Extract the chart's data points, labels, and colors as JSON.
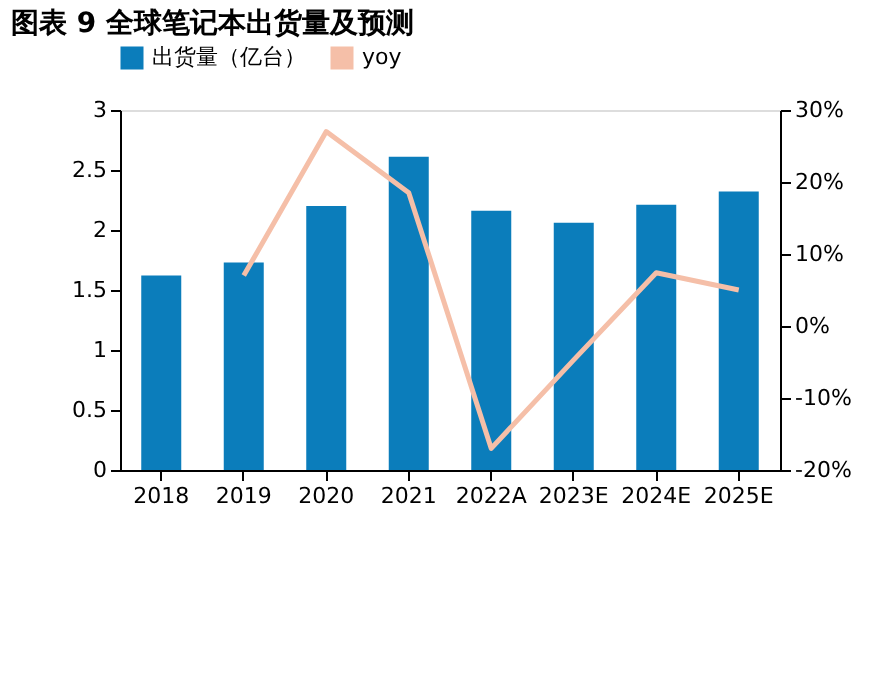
{
  "chart_data": {
    "type": "bar",
    "title": "图表 9 全球笔记本出货量及预测",
    "categories": [
      "2018",
      "2019",
      "2020",
      "2021",
      "2022A",
      "2023E",
      "2024E",
      "2025E"
    ],
    "series": [
      {
        "name": "出货量（亿台）",
        "color": "#0b7dbb",
        "values": [
          1.62,
          1.73,
          2.2,
          2.61,
          2.16,
          2.06,
          2.21,
          2.32
        ]
      },
      {
        "name": "yoy",
        "color": "#f5bfa8",
        "type": "line",
        "axis": "y2",
        "values": [
          null,
          7,
          27,
          18.5,
          -17,
          -4.7,
          7.4,
          5
        ]
      }
    ],
    "ylim": [
      0,
      3
    ],
    "yticks": [
      0,
      0.5,
      1,
      1.5,
      2,
      2.5,
      3
    ],
    "y2lim": [
      -20,
      30
    ],
    "y2ticks": [
      {
        "value": -20,
        "label": "-20%"
      },
      {
        "value": -10,
        "label": "-10%"
      },
      {
        "value": 0,
        "label": "0%"
      },
      {
        "value": 10,
        "label": "10%"
      },
      {
        "value": 20,
        "label": "20%"
      },
      {
        "value": 30,
        "label": "30%"
      }
    ],
    "grid": false,
    "legend": "top"
  }
}
